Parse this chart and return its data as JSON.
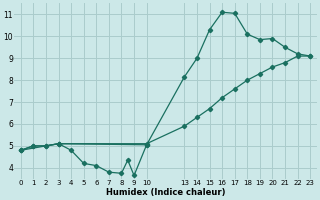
{
  "bg_color": "#cce8e8",
  "grid_color": "#aacccc",
  "line_color": "#1a7060",
  "line1_x": [
    0,
    1,
    2,
    3,
    4,
    5,
    6,
    7,
    8,
    8.5,
    9,
    10
  ],
  "line1_y": [
    4.8,
    5.0,
    5.0,
    5.1,
    4.8,
    4.2,
    4.1,
    3.8,
    3.75,
    4.35,
    3.65,
    5.05
  ],
  "line2_x": [
    0,
    1,
    2,
    3,
    10,
    13,
    14,
    15,
    16,
    17,
    18,
    19,
    20,
    21,
    22,
    23
  ],
  "line2_y": [
    4.8,
    5.0,
    5.0,
    5.1,
    5.05,
    8.15,
    9.0,
    10.3,
    11.1,
    11.05,
    10.1,
    9.85,
    9.9,
    9.5,
    9.2,
    9.1
  ],
  "line3_x": [
    0,
    3,
    10,
    13,
    14,
    15,
    16,
    17,
    18,
    19,
    20,
    21,
    22,
    23
  ],
  "line3_y": [
    4.8,
    5.1,
    5.1,
    5.9,
    6.3,
    6.7,
    7.2,
    7.6,
    8.0,
    8.3,
    8.6,
    8.8,
    9.1,
    9.1
  ],
  "xlim": [
    -0.5,
    23.5
  ],
  "ylim": [
    3.5,
    11.5
  ],
  "yticks": [
    4,
    5,
    6,
    7,
    8,
    9,
    10,
    11
  ],
  "xticks": [
    0,
    1,
    2,
    3,
    4,
    5,
    6,
    7,
    8,
    9,
    10,
    13,
    14,
    15,
    16,
    17,
    18,
    19,
    20,
    21,
    22,
    23
  ],
  "xtick_labels": [
    "0",
    "1",
    "2",
    "3",
    "4",
    "5",
    "6",
    "7",
    "8",
    "9",
    "10",
    "13",
    "14",
    "15",
    "16",
    "17",
    "18",
    "19",
    "20",
    "21",
    "22",
    "23"
  ],
  "xlabel": "Humidex (Indice chaleur)"
}
